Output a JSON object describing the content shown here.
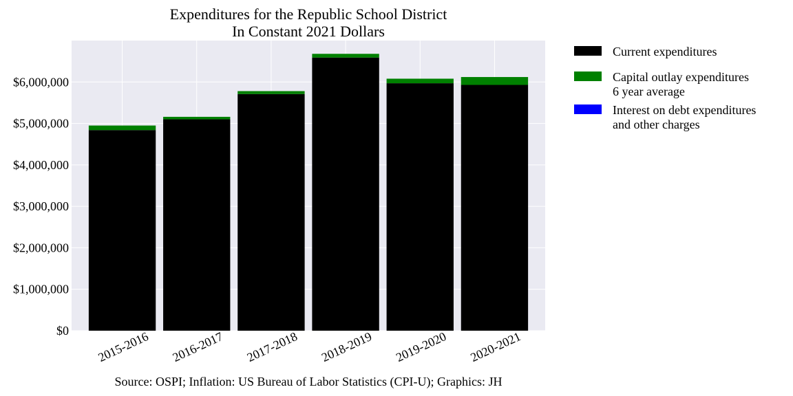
{
  "chart_data": {
    "type": "bar",
    "stacked": true,
    "title": [
      "Expenditures for the Republic School District",
      "In Constant 2021 Dollars"
    ],
    "xlabel": "",
    "ylabel": "",
    "categories": [
      "2015-2016",
      "2016-2017",
      "2017-2018",
      "2018-2019",
      "2019-2020",
      "2020-2021"
    ],
    "series": [
      {
        "name": "Current expenditures",
        "color": "#000000",
        "values": [
          4840000,
          5100000,
          5710000,
          6590000,
          5970000,
          5930000
        ]
      },
      {
        "name": "Capital outlay expenditures\n6 year average",
        "color": "#008000",
        "values": [
          110000,
          60000,
          70000,
          90000,
          110000,
          190000
        ]
      },
      {
        "name": "Interest on debt expenditures\nand other charges",
        "color": "#0000ff",
        "values": [
          0,
          0,
          0,
          0,
          0,
          0
        ]
      }
    ],
    "ylim": [
      0,
      7000000
    ],
    "yticks": [
      0,
      1000000,
      2000000,
      3000000,
      4000000,
      5000000,
      6000000
    ],
    "ytick_labels": [
      "$0",
      "$1,000,000",
      "$2,000,000",
      "$3,000,000",
      "$4,000,000",
      "$5,000,000",
      "$6,000,000"
    ],
    "grid": true,
    "legend_position": "outside-right-top",
    "background_color": "#eaeaf2",
    "source": "Source: OSPI; Inflation: US Bureau of Labor Statistics (CPI-U); Graphics: JH"
  }
}
